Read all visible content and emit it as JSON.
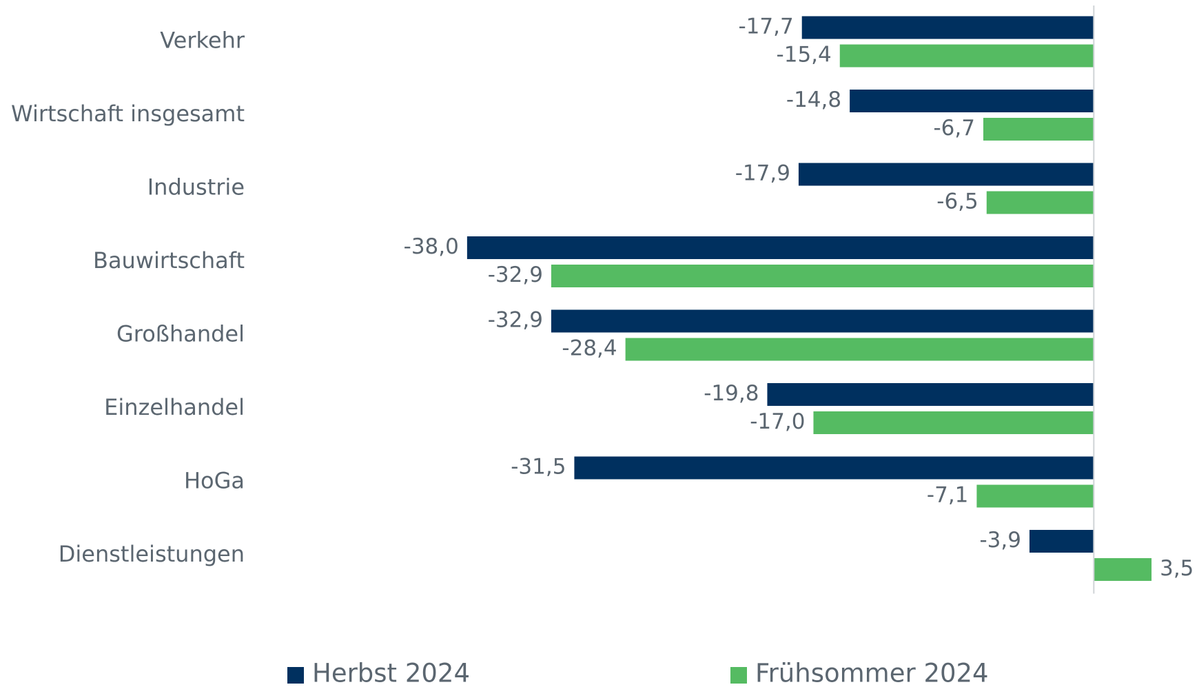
{
  "chart_data": {
    "type": "barh",
    "categories": [
      "Verkehr",
      "Wirtschaft insgesamt",
      "Industrie",
      "Bauwirtschaft",
      "Großhandel",
      "Einzelhandel",
      "HoGa",
      "Dienstleistungen"
    ],
    "series": [
      {
        "name": "Herbst 2024",
        "color": "#00305f",
        "values": [
          -17.7,
          -14.8,
          -17.9,
          -38.0,
          -32.9,
          -19.8,
          -31.5,
          -3.9
        ],
        "value_labels": [
          "-17,7",
          "-14,8",
          "-17,9",
          "-38,0",
          "-32,9",
          "-19,8",
          "-31,5",
          "-3,9"
        ]
      },
      {
        "name": "Frühsommer 2024",
        "color": "#55bb62",
        "values": [
          -15.4,
          -6.7,
          -6.5,
          -32.9,
          -28.4,
          -17.0,
          -7.1,
          3.5
        ],
        "value_labels": [
          "-15,4",
          "-6,7",
          "-6,5",
          "-32,9",
          "-28,4",
          "-17,0",
          "-7,1",
          "3,5"
        ]
      }
    ],
    "xlim": [
      -40,
      5
    ]
  }
}
